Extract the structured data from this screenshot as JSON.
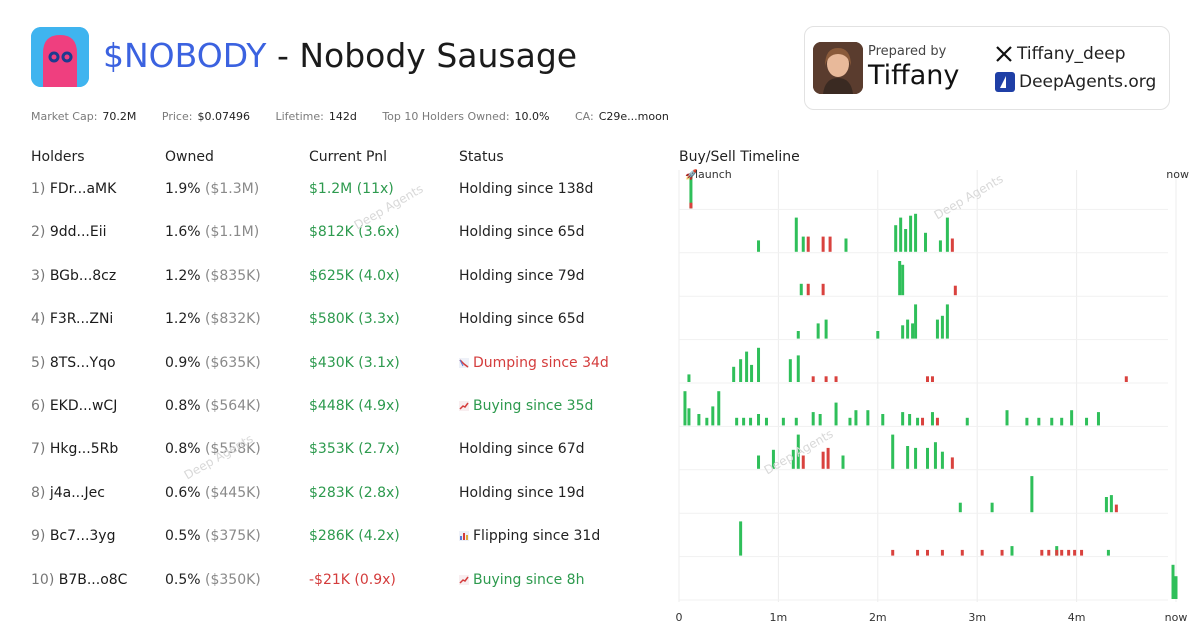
{
  "header": {
    "ticker": "$NOBODY",
    "separator": " - ",
    "name": "Nobody Sausage"
  },
  "stats": [
    {
      "label": "Market Cap:",
      "value": "70.2M"
    },
    {
      "label": "Price:",
      "value": "$0.07496"
    },
    {
      "label": "Lifetime:",
      "value": "142d"
    },
    {
      "label": "Top 10 Holders Owned:",
      "value": "10.0%"
    },
    {
      "label": "CA:",
      "value": "C29e...moon"
    }
  ],
  "prepared": {
    "label": "Prepared by",
    "name": "Tiffany",
    "x_handle": "Tiffany_deep",
    "site": "DeepAgents.org"
  },
  "columns": {
    "holders": "Holders",
    "owned": "Owned",
    "pnl": "Current Pnl",
    "status": "Status",
    "timeline": "Buy/Sell Timeline"
  },
  "holders": [
    {
      "rank": "1)",
      "addr": "FDr...aMK",
      "pct": "1.9%",
      "usd": "($1.3M)",
      "pnl": "$1.2M (11x)",
      "pnl_sign": "pos",
      "status": "Holding since 138d",
      "status_kind": "hold"
    },
    {
      "rank": "2)",
      "addr": "9dd...Eii",
      "pct": "1.6%",
      "usd": "($1.1M)",
      "pnl": "$812K (3.6x)",
      "pnl_sign": "pos",
      "status": "Holding since 65d",
      "status_kind": "hold"
    },
    {
      "rank": "3)",
      "addr": "BGb...8cz",
      "pct": "1.2%",
      "usd": "($835K)",
      "pnl": "$625K (4.0x)",
      "pnl_sign": "pos",
      "status": "Holding since 79d",
      "status_kind": "hold"
    },
    {
      "rank": "4)",
      "addr": "F3R...ZNi",
      "pct": "1.2%",
      "usd": "($832K)",
      "pnl": "$580K (3.3x)",
      "pnl_sign": "pos",
      "status": "Holding since 65d",
      "status_kind": "hold"
    },
    {
      "rank": "5)",
      "addr": "8TS...Yqo",
      "pct": "0.9%",
      "usd": "($635K)",
      "pnl": "$430K (3.1x)",
      "pnl_sign": "pos",
      "status": "Dumping since 34d",
      "status_kind": "dump"
    },
    {
      "rank": "6)",
      "addr": "EKD...wCJ",
      "pct": "0.8%",
      "usd": "($564K)",
      "pnl": "$448K (4.9x)",
      "pnl_sign": "pos",
      "status": "Buying since 35d",
      "status_kind": "buy"
    },
    {
      "rank": "7)",
      "addr": "Hkg...5Rb",
      "pct": "0.8%",
      "usd": "($558K)",
      "pnl": "$353K (2.7x)",
      "pnl_sign": "pos",
      "status": "Holding since 67d",
      "status_kind": "hold"
    },
    {
      "rank": "8)",
      "addr": "j4a...Jec",
      "pct": "0.6%",
      "usd": "($445K)",
      "pnl": "$283K (2.8x)",
      "pnl_sign": "pos",
      "status": "Holding since 19d",
      "status_kind": "hold"
    },
    {
      "rank": "9)",
      "addr": "Bc7...3yg",
      "pct": "0.5%",
      "usd": "($375K)",
      "pnl": "$286K (4.2x)",
      "pnl_sign": "pos",
      "status": "Flipping since 31d",
      "status_kind": "flip"
    },
    {
      "rank": "10)",
      "addr": "B7B...o8C",
      "pct": "0.5%",
      "usd": "($350K)",
      "pnl": "-$21K (0.9x)",
      "pnl_sign": "neg",
      "status": "Buying since 8h",
      "status_kind": "buy"
    }
  ],
  "watermark": "Deep Agents",
  "colors": {
    "buy": "#2fbf5a",
    "sell": "#d9423e",
    "ticker": "#3b62e0",
    "grid": "#ececec"
  },
  "chart_data": {
    "type": "bar",
    "title": "Buy/Sell Timeline",
    "x_unit": "months",
    "xlim": [
      0,
      5
    ],
    "ticks": [
      {
        "v": 0,
        "label": "0"
      },
      {
        "v": 1,
        "label": "1m"
      },
      {
        "v": 2,
        "label": "2m"
      },
      {
        "v": 3,
        "label": "3m"
      },
      {
        "v": 4,
        "label": "4m"
      },
      {
        "v": 5,
        "label": "now"
      }
    ],
    "top_labels": {
      "launch": "launch",
      "now": "now"
    },
    "rows": [
      {
        "buys": [
          [
            0.12,
            0.9
          ]
        ],
        "sells": [
          [
            0.12,
            0.15
          ]
        ]
      },
      {
        "buys": [
          [
            0.8,
            0.3
          ],
          [
            1.18,
            0.9
          ],
          [
            1.25,
            0.4
          ],
          [
            1.68,
            0.35
          ],
          [
            2.18,
            0.7
          ],
          [
            2.23,
            0.9
          ],
          [
            2.28,
            0.6
          ],
          [
            2.33,
            0.95
          ],
          [
            2.38,
            1.0
          ],
          [
            2.48,
            0.5
          ],
          [
            2.63,
            0.3
          ],
          [
            2.7,
            0.9
          ]
        ],
        "sells": [
          [
            1.3,
            0.4
          ],
          [
            1.45,
            0.4
          ],
          [
            1.52,
            0.4
          ],
          [
            2.75,
            0.35
          ]
        ]
      },
      {
        "buys": [
          [
            1.23,
            0.3
          ],
          [
            2.22,
            0.9
          ],
          [
            2.25,
            0.8
          ]
        ],
        "sells": [
          [
            1.3,
            0.3
          ],
          [
            1.45,
            0.3
          ],
          [
            2.78,
            0.25
          ]
        ]
      },
      {
        "buys": [
          [
            1.2,
            0.2
          ],
          [
            1.4,
            0.4
          ],
          [
            1.48,
            0.5
          ],
          [
            2.0,
            0.2
          ],
          [
            2.25,
            0.35
          ],
          [
            2.3,
            0.5
          ],
          [
            2.35,
            0.4
          ],
          [
            2.38,
            0.9
          ],
          [
            2.6,
            0.5
          ],
          [
            2.65,
            0.6
          ],
          [
            2.7,
            0.9
          ]
        ],
        "sells": []
      },
      {
        "buys": [
          [
            0.1,
            0.2
          ],
          [
            0.55,
            0.4
          ],
          [
            0.62,
            0.6
          ],
          [
            0.68,
            0.8
          ],
          [
            0.73,
            0.45
          ],
          [
            0.8,
            0.9
          ],
          [
            1.12,
            0.6
          ],
          [
            1.2,
            0.7
          ]
        ],
        "sells": [
          [
            1.35,
            0.15
          ],
          [
            1.48,
            0.15
          ],
          [
            1.58,
            0.15
          ],
          [
            2.5,
            0.15
          ],
          [
            2.55,
            0.15
          ],
          [
            4.5,
            0.15
          ]
        ]
      },
      {
        "buys": [
          [
            0.06,
            0.9
          ],
          [
            0.1,
            0.45
          ],
          [
            0.2,
            0.3
          ],
          [
            0.28,
            0.2
          ],
          [
            0.34,
            0.5
          ],
          [
            0.4,
            0.9
          ],
          [
            0.58,
            0.2
          ],
          [
            0.65,
            0.2
          ],
          [
            0.72,
            0.2
          ],
          [
            0.8,
            0.3
          ],
          [
            0.88,
            0.2
          ],
          [
            1.05,
            0.2
          ],
          [
            1.18,
            0.2
          ],
          [
            1.35,
            0.35
          ],
          [
            1.42,
            0.3
          ],
          [
            1.58,
            0.6
          ],
          [
            1.72,
            0.2
          ],
          [
            1.78,
            0.4
          ],
          [
            1.9,
            0.4
          ],
          [
            2.05,
            0.3
          ],
          [
            2.25,
            0.35
          ],
          [
            2.32,
            0.3
          ],
          [
            2.4,
            0.2
          ],
          [
            2.55,
            0.35
          ],
          [
            2.9,
            0.2
          ],
          [
            3.3,
            0.4
          ],
          [
            3.5,
            0.2
          ],
          [
            3.62,
            0.2
          ],
          [
            3.75,
            0.2
          ],
          [
            3.85,
            0.2
          ],
          [
            3.95,
            0.4
          ],
          [
            4.1,
            0.2
          ],
          [
            4.22,
            0.35
          ]
        ],
        "sells": [
          [
            2.45,
            0.2
          ],
          [
            2.6,
            0.2
          ]
        ]
      },
      {
        "buys": [
          [
            0.8,
            0.35
          ],
          [
            0.95,
            0.5
          ],
          [
            1.15,
            0.5
          ],
          [
            1.2,
            0.9
          ],
          [
            1.65,
            0.35
          ],
          [
            2.15,
            0.9
          ],
          [
            2.3,
            0.6
          ],
          [
            2.38,
            0.55
          ],
          [
            2.5,
            0.55
          ],
          [
            2.58,
            0.7
          ],
          [
            2.65,
            0.45
          ]
        ],
        "sells": [
          [
            1.25,
            0.35
          ],
          [
            1.45,
            0.45
          ],
          [
            1.5,
            0.55
          ],
          [
            2.75,
            0.3
          ]
        ]
      },
      {
        "buys": [
          [
            2.83,
            0.25
          ],
          [
            3.15,
            0.25
          ],
          [
            3.55,
            0.95
          ],
          [
            4.3,
            0.4
          ],
          [
            4.35,
            0.45
          ]
        ],
        "sells": [
          [
            4.4,
            0.2
          ]
        ]
      },
      {
        "buys": [
          [
            0.62,
            0.9
          ],
          [
            3.35,
            0.25
          ],
          [
            3.8,
            0.25
          ],
          [
            4.32,
            0.15
          ]
        ],
        "sells": [
          [
            2.15,
            0.15
          ],
          [
            2.4,
            0.15
          ],
          [
            2.5,
            0.15
          ],
          [
            2.65,
            0.15
          ],
          [
            2.85,
            0.15
          ],
          [
            3.05,
            0.15
          ],
          [
            3.25,
            0.15
          ],
          [
            3.65,
            0.15
          ],
          [
            3.72,
            0.15
          ],
          [
            3.8,
            0.15
          ],
          [
            3.85,
            0.15
          ],
          [
            3.92,
            0.15
          ],
          [
            3.98,
            0.15
          ],
          [
            4.05,
            0.15
          ]
        ]
      },
      {
        "buys": [
          [
            4.97,
            0.9
          ],
          [
            5.0,
            0.6
          ]
        ],
        "sells": []
      }
    ]
  }
}
